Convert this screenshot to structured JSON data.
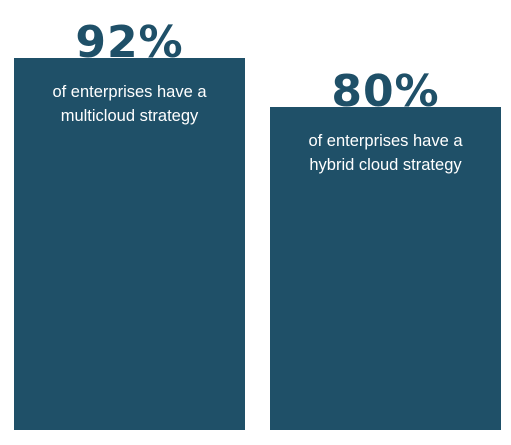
{
  "chart_data": {
    "type": "bar",
    "categories": [
      "multicloud",
      "hybrid cloud"
    ],
    "values": [
      92,
      80
    ],
    "value_labels": [
      "92%",
      "80%"
    ],
    "captions": [
      [
        "of enterprises have a",
        "multicloud strategy"
      ],
      [
        "of enterprises have a",
        "hybrid cloud strategy"
      ]
    ],
    "ylim": [
      0,
      100
    ],
    "grid": false,
    "bar_color": "#1f5068",
    "value_color": "#1f5068",
    "caption_color": "#ffffff"
  }
}
